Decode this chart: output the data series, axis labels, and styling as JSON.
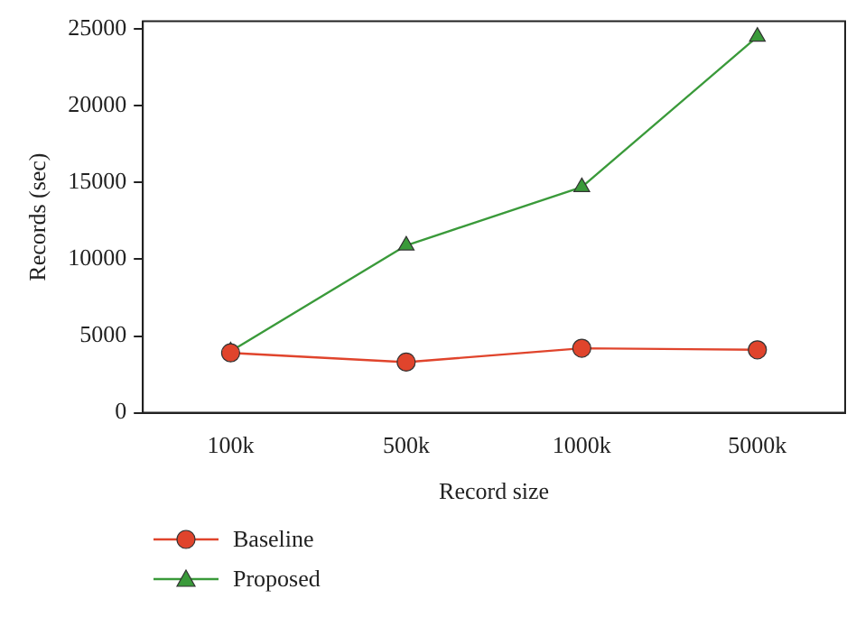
{
  "chart_data": {
    "type": "line",
    "xlabel": "Record size",
    "ylabel": "Records (sec)",
    "categories": [
      "100k",
      "500k",
      "1000k",
      "5000k"
    ],
    "series": [
      {
        "name": "Baseline",
        "color": "#e0442c",
        "marker": "circle",
        "values": [
          3900,
          3300,
          4200,
          4100
        ]
      },
      {
        "name": "Proposed",
        "color": "#3a9a3a",
        "marker": "triangle",
        "values": [
          4000,
          10900,
          14700,
          24500
        ]
      }
    ],
    "ylim": [
      0,
      25500
    ],
    "yticks": [
      0,
      5000,
      10000,
      15000,
      20000,
      25000
    ],
    "grid": false,
    "legend": "bottom",
    "line_style": "solid"
  }
}
